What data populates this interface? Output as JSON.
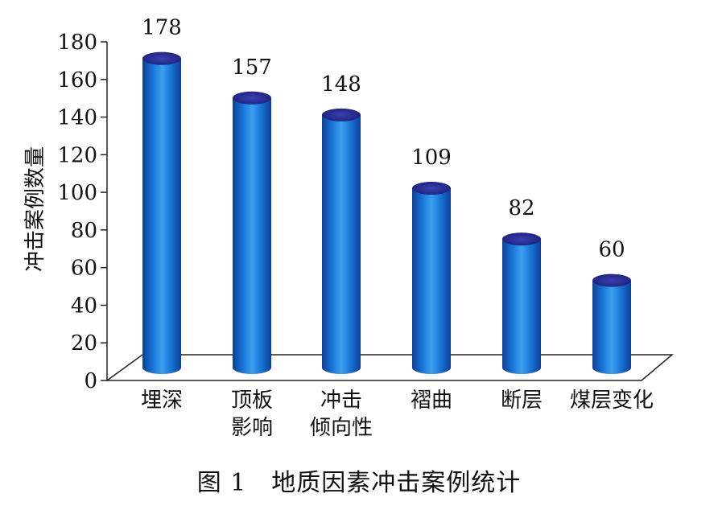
{
  "chart_data": {
    "type": "bar",
    "title": "",
    "xlabel": "",
    "ylabel": "冲击案例数量",
    "ylim": [
      0,
      180
    ],
    "yticks": [
      "0",
      "20",
      "40",
      "60",
      "80",
      "100",
      "120",
      "140",
      "160",
      "180"
    ],
    "categories": [
      [
        "埋深"
      ],
      [
        "顶板",
        "影响"
      ],
      [
        "冲击",
        "倾向性"
      ],
      [
        "褶曲"
      ],
      [
        "断层"
      ],
      [
        "煤层变化"
      ]
    ],
    "values": [
      178,
      157,
      148,
      109,
      82,
      60
    ],
    "data_labels": [
      "178",
      "157",
      "148",
      "109",
      "82",
      "60"
    ],
    "grid": false,
    "bar_color": "#1a6fd0",
    "bar_top_color": "#2a2f9a"
  },
  "caption": "图 1　地质因素冲击案例统计"
}
